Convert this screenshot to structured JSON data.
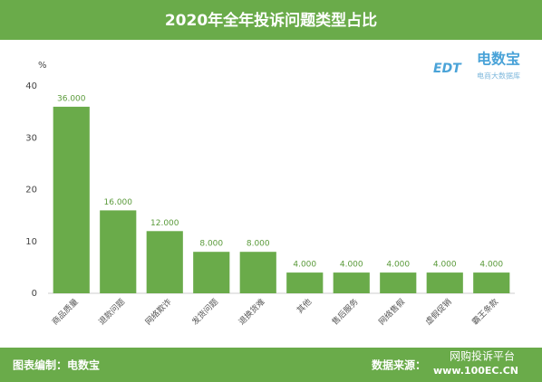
{
  "chart_data": {
    "type": "bar",
    "title": "2020年全年投诉问题类型占比",
    "y_axis_label": "%",
    "categories": [
      "商品质量",
      "退款问题",
      "网络欺诈",
      "发货问题",
      "退换货难",
      "其他",
      "售后服务",
      "网络售假",
      "虚假促销",
      "霸王条款"
    ],
    "values": [
      36,
      16,
      12,
      8,
      8,
      4,
      4,
      4,
      4,
      4
    ],
    "value_labels": [
      "36.000",
      "16.000",
      "12.000",
      "8.000",
      "8.000",
      "4.000",
      "4.000",
      "4.000",
      "4.000",
      "4.000"
    ],
    "color": "#6aab4a",
    "ylim": [
      0,
      40
    ],
    "yticks": [
      0,
      10,
      20,
      30,
      40
    ],
    "grid": false,
    "logo": {
      "mark": "EDT",
      "name": "电数宝",
      "tagline": "电商大数据库"
    },
    "footer_left": "图表编制：电数宝",
    "footer_source": "数据来源：",
    "watermark": "网购投诉平台",
    "footer_url": "www.100EC.CN"
  }
}
